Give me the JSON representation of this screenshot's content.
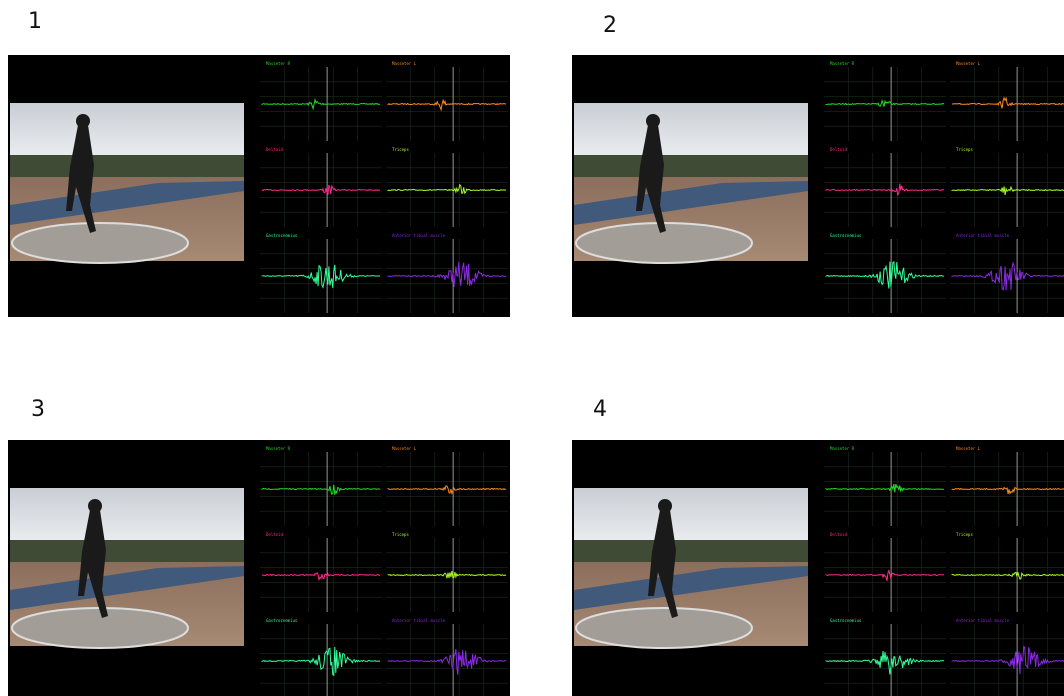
{
  "panels": [
    {
      "label": "1"
    },
    {
      "label": "2"
    },
    {
      "label": "3"
    },
    {
      "label": "4"
    }
  ],
  "channels": [
    "Masseter R",
    "Masseter L",
    "Deltoid",
    "Triceps",
    "Gastrocnemius",
    "Anterior tibial muscle"
  ]
}
